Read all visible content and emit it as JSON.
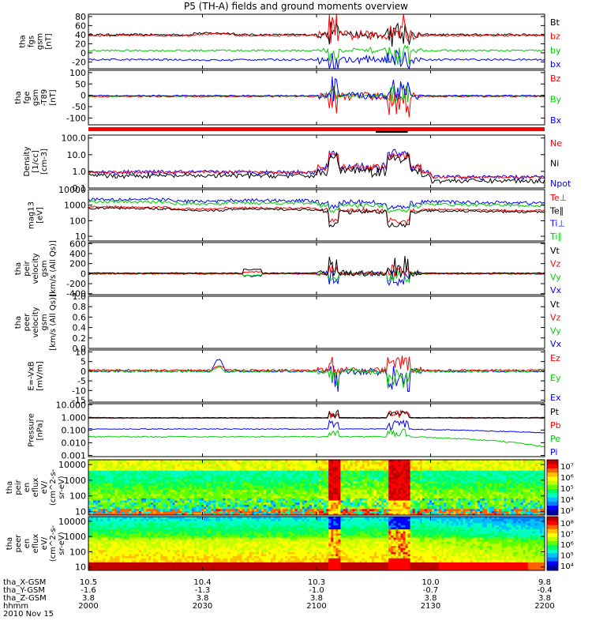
{
  "title": "P5 (TH-A) fields and ground moments overview",
  "date": "2010 Nov 15",
  "chart_data": {
    "type": "line",
    "title": "P5 (TH-A) fields and ground moments overview",
    "x_label_rows": [
      {
        "name": "tha_X-GSM",
        "values": [
          "10.5",
          "10.4",
          "10.3",
          "10.0",
          "9.8"
        ]
      },
      {
        "name": "tha_Y-GSM",
        "values": [
          "-1.6",
          "-1.3",
          "-1.0",
          "-0.7",
          "-0.4"
        ]
      },
      {
        "name": "tha_Z-GSM",
        "values": [
          "3.8",
          "3.8",
          "3.8",
          "3.8",
          "3.8"
        ]
      },
      {
        "name": "hhmm",
        "values": [
          "2000",
          "2030",
          "2100",
          "2130",
          "2200"
        ]
      }
    ],
    "x_tick_positions": [
      0,
      0.25,
      0.5,
      0.75,
      1
    ],
    "panels": [
      {
        "id": "fgs",
        "ylabel": [
          "tha",
          "fgs",
          "gsm",
          "[nT]"
        ],
        "scale": "linear",
        "ylim": [
          -35,
          85
        ],
        "ticks": [
          "80",
          "60",
          "40",
          "20",
          "0",
          "-20"
        ],
        "tick_values": [
          80,
          60,
          40,
          20,
          0,
          -20
        ],
        "legend": [
          {
            "label": "Bt",
            "color": "#000000"
          },
          {
            "label": "bz",
            "color": "#ff0000"
          },
          {
            "label": "by",
            "color": "#00cc00"
          },
          {
            "label": "bx",
            "color": "#0000ff"
          }
        ],
        "series": [
          {
            "name": "Bt",
            "color": "#000000",
            "base": 40,
            "noise": 2,
            "dip": 5,
            "burst": 30
          },
          {
            "name": "bz",
            "color": "#ff0000",
            "base": 38,
            "noise": 2,
            "dip": 20,
            "burst": 40
          },
          {
            "name": "by",
            "color": "#00cc00",
            "base": 5,
            "noise": 2,
            "dip": -10,
            "burst": 20
          },
          {
            "name": "bx",
            "color": "#0000ff",
            "base": -15,
            "noise": 2,
            "dip": -10,
            "burst": 30
          }
        ]
      },
      {
        "id": "fge",
        "ylabel": [
          "tha",
          "fge",
          "gsm",
          "-T89",
          "[nT]"
        ],
        "scale": "linear",
        "ylim": [
          -130,
          110
        ],
        "ticks": [
          "100",
          "50",
          "0",
          "-50",
          "-100"
        ],
        "tick_values": [
          100,
          50,
          0,
          -50,
          -100
        ],
        "legend": [
          {
            "label": "Bz",
            "color": "#ff0000"
          },
          {
            "label": "By",
            "color": "#00cc00"
          },
          {
            "label": "Bx",
            "color": "#0000ff"
          }
        ],
        "series": [
          {
            "name": "Bz",
            "color": "#ff0000",
            "base": -5,
            "noise": 3,
            "dip": -20,
            "burst": 70
          },
          {
            "name": "By",
            "color": "#00cc00",
            "base": -3,
            "noise": 3,
            "dip": 10,
            "burst": 40
          },
          {
            "name": "Bx",
            "color": "#0000ff",
            "base": -2,
            "noise": 3,
            "dip": 30,
            "burst": 60
          }
        ]
      },
      {
        "id": "density",
        "ylabel": [
          "Density",
          "[1/cc]",
          "[cm-3]"
        ],
        "scale": "log",
        "ylim": [
          0.1,
          150
        ],
        "ticks": [
          "100.0",
          "10.0",
          "1.0",
          "0.1"
        ],
        "tick_values": [
          100,
          10,
          1,
          0.1
        ],
        "legend": [
          {
            "label": "Ne",
            "color": "#ff0000"
          },
          {
            "label": "Ni",
            "color": "#000000"
          },
          {
            "label": "Npot",
            "color": "#0000ff"
          }
        ],
        "series": [
          {
            "name": "Npot",
            "color": "#0000ff",
            "base": 0.9,
            "noise": 0.3,
            "dip": 8,
            "burst": 12
          },
          {
            "name": "Ne",
            "color": "#ff0000",
            "base": 0.9,
            "noise": 0.15,
            "dip": 6,
            "burst": 8
          },
          {
            "name": "Ni",
            "color": "#000000",
            "base": 0.55,
            "noise": 0.3,
            "dip": 8,
            "burst": 10
          }
        ]
      },
      {
        "id": "temp",
        "ylabel": [
          "mag13",
          "[eV]"
        ],
        "scale": "log",
        "ylim": [
          5,
          10000
        ],
        "ticks": [
          "10000",
          "1000",
          "100",
          "10"
        ],
        "tick_values": [
          10000,
          1000,
          100,
          10
        ],
        "legend": [
          {
            "label": "Te⊥",
            "color": "#ff0000"
          },
          {
            "label": "Te∥",
            "color": "#000000"
          },
          {
            "label": "Ti⊥",
            "color": "#0000ff"
          },
          {
            "label": "Ti∥",
            "color": "#00cc00"
          }
        ],
        "series": [
          {
            "name": "Ti⊥",
            "color": "#0000ff",
            "base": 2500,
            "noise": 0.25,
            "dip": 0.3,
            "burst": 0.2
          },
          {
            "name": "Ti∥",
            "color": "#00cc00",
            "base": 1700,
            "noise": 0.2,
            "dip": 0.3,
            "burst": 0.2
          },
          {
            "name": "Te⊥",
            "color": "#ff0000",
            "base": 800,
            "noise": 0.15,
            "dip": 0.1,
            "burst": 0.15
          },
          {
            "name": "Te∥",
            "color": "#000000",
            "base": 650,
            "noise": 0.15,
            "dip": 0.08,
            "burst": 0.12
          }
        ]
      },
      {
        "id": "peir_vel",
        "ylabel": [
          "tha",
          "peir",
          "velocity",
          "gsm",
          "[km/s (All Qs)]"
        ],
        "scale": "linear",
        "ylim": [
          -420,
          620
        ],
        "ticks": [
          "600",
          "400",
          "200",
          "0",
          "-200",
          "-400"
        ],
        "tick_values": [
          600,
          400,
          200,
          0,
          -200,
          -400
        ],
        "legend": [
          {
            "label": "Vt",
            "color": "#000000"
          },
          {
            "label": "Vz",
            "color": "#ff0000"
          },
          {
            "label": "Vy",
            "color": "#00cc00"
          },
          {
            "label": "Vx",
            "color": "#0000ff"
          }
        ],
        "series": [
          {
            "name": "Vx",
            "color": "#0000ff",
            "base": 0,
            "noise": 15,
            "dip": -80,
            "burst": 150
          },
          {
            "name": "Vy",
            "color": "#00cc00",
            "base": 0,
            "noise": 12,
            "dip": -60,
            "burst": 120
          },
          {
            "name": "Vz",
            "color": "#ff0000",
            "base": 0,
            "noise": 12,
            "dip": 60,
            "burst": 120
          },
          {
            "name": "Vt",
            "color": "#000000",
            "base": 10,
            "noise": 10,
            "dip": 120,
            "burst": 220
          }
        ]
      },
      {
        "id": "peer_vel",
        "ylabel": [
          "tha",
          "peer",
          "velocity",
          "gsm",
          "[km/s (All Qs)]"
        ],
        "scale": "linear",
        "ylim": [
          0,
          1
        ],
        "ticks": [
          "1.0",
          "0.8",
          "0.6",
          "0.4",
          "0.2",
          "0.0"
        ],
        "tick_values": [
          1,
          0.8,
          0.6,
          0.4,
          0.2,
          0
        ],
        "legend": [
          {
            "label": "Vt",
            "color": "#000000"
          },
          {
            "label": "Vz",
            "color": "#ff0000"
          },
          {
            "label": "Vy",
            "color": "#00cc00"
          },
          {
            "label": "Vx",
            "color": "#0000ff"
          }
        ],
        "series": []
      },
      {
        "id": "efield",
        "ylabel": [
          "E=-VxB",
          "[mV/m]"
        ],
        "scale": "linear",
        "ylim": [
          -16,
          11
        ],
        "ticks": [
          "10",
          "5",
          "0",
          "-5",
          "-10",
          "-15"
        ],
        "tick_values": [
          10,
          5,
          0,
          -5,
          -10,
          -15
        ],
        "legend": [
          {
            "label": "Ez",
            "color": "#ff0000"
          },
          {
            "label": "Ey",
            "color": "#00cc00"
          },
          {
            "label": "Ex",
            "color": "#0000ff"
          }
        ],
        "series": [
          {
            "name": "Ex",
            "color": "#0000ff",
            "base": 0,
            "noise": 0.5,
            "dip": -4,
            "burst": 7
          },
          {
            "name": "Ez",
            "color": "#ff0000",
            "base": 0.5,
            "noise": 0.5,
            "dip": 3,
            "burst": 5
          },
          {
            "name": "Ey",
            "color": "#00cc00",
            "base": 0,
            "noise": 0.6,
            "dip": -4,
            "burst": 5
          }
        ]
      },
      {
        "id": "pressure",
        "ylabel": [
          "Pressure",
          "[nPa]"
        ],
        "scale": "log",
        "ylim": [
          0.0008,
          12
        ],
        "ticks": [
          "10.000",
          "1.000",
          "0.100",
          "0.010",
          "0.001"
        ],
        "tick_values": [
          10,
          1,
          0.1,
          0.01,
          0.001
        ],
        "legend": [
          {
            "label": "Pt",
            "color": "#000000"
          },
          {
            "label": "Pb",
            "color": "#ff0000"
          },
          {
            "label": "Pe",
            "color": "#00cc00"
          },
          {
            "label": "Pi",
            "color": "#0000ff"
          }
        ],
        "series": [
          {
            "name": "Pe",
            "color": "#00cc00",
            "base": 0.03,
            "noise": 0.1,
            "dip": 0.2,
            "burst": 0.3
          },
          {
            "name": "Pi",
            "color": "#0000ff",
            "base": 0.12,
            "noise": 0.08,
            "dip": 0.3,
            "burst": 0.4
          },
          {
            "name": "Pb",
            "color": "#ff0000",
            "base": 0.85,
            "noise": 0.05,
            "dip": 0.2,
            "burst": 0.3
          },
          {
            "name": "Pt",
            "color": "#000000",
            "base": 0.95,
            "noise": 0.05,
            "dip": 0.2,
            "burst": 0.3
          }
        ]
      },
      {
        "id": "peir_spec",
        "type": "heatmap",
        "ylabel": [
          "tha",
          "peir",
          "en",
          "eflux",
          "eV/",
          "(cm^2-s-",
          "sr-eV)"
        ],
        "scale": "log",
        "ylim": [
          6,
          20000
        ],
        "ticks": [
          "10000",
          "1000",
          "100",
          "10"
        ],
        "tick_values": [
          10000,
          1000,
          100,
          10
        ],
        "colorbar": {
          "labels": [
            "10⁷",
            "10⁶",
            "10⁵",
            "10⁴",
            "10³"
          ]
        }
      },
      {
        "id": "peer_spec",
        "type": "heatmap",
        "ylabel": [
          "tha",
          "peer",
          "en",
          "eflux",
          "eV/",
          "(cm^2-s-",
          "sr-eV)"
        ],
        "scale": "log",
        "ylim": [
          6,
          20000
        ],
        "ticks": [
          "10000",
          "1000",
          "100",
          "10"
        ],
        "tick_values": [
          10000,
          1000,
          100,
          10
        ],
        "colorbar": {
          "labels": [
            "10⁸",
            "10⁷",
            "10⁶",
            "10⁵",
            "10⁴"
          ]
        }
      }
    ]
  }
}
